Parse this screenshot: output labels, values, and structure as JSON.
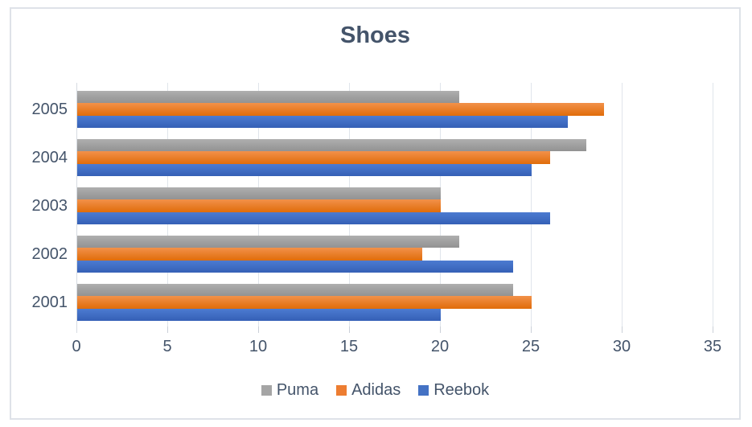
{
  "chart_data": {
    "type": "bar",
    "orientation": "horizontal",
    "title": "Shoes",
    "xlabel": "",
    "ylabel": "",
    "categories": [
      "2001",
      "2002",
      "2003",
      "2004",
      "2005"
    ],
    "category_display_order_top_to_bottom": [
      "2005",
      "2004",
      "2003",
      "2002",
      "2001"
    ],
    "series": [
      {
        "name": "Puma",
        "color": "#A5A5A5",
        "gradient_top": "#AFAFAF",
        "gradient_bottom": "#929292",
        "values": [
          24,
          21,
          20,
          28,
          21
        ]
      },
      {
        "name": "Adidas",
        "color": "#ED7D31",
        "gradient_top": "#F2914A",
        "gradient_bottom": "#E06C0A",
        "values": [
          25,
          19,
          20,
          26,
          29
        ]
      },
      {
        "name": "Reebok",
        "color": "#4472C4",
        "gradient_top": "#4C7BD1",
        "gradient_bottom": "#3560B6",
        "values": [
          20,
          24,
          26,
          25,
          27
        ]
      }
    ],
    "x_axis": {
      "min": 0,
      "max": 35,
      "tick_step": 5,
      "tick_labels": [
        "0",
        "5",
        "10",
        "15",
        "20",
        "25",
        "30",
        "35"
      ]
    },
    "grid": true,
    "legend_position": "bottom"
  },
  "styles": {
    "title_color": "#44546A",
    "axis_text_color": "#44546A",
    "gridline_color": "#E0E5EB",
    "axis_line_color": "#D7DCE2",
    "tick_color": "#CBD0D8",
    "frame_border_color": "#DEE2E8",
    "background": "#FFFFFF"
  }
}
